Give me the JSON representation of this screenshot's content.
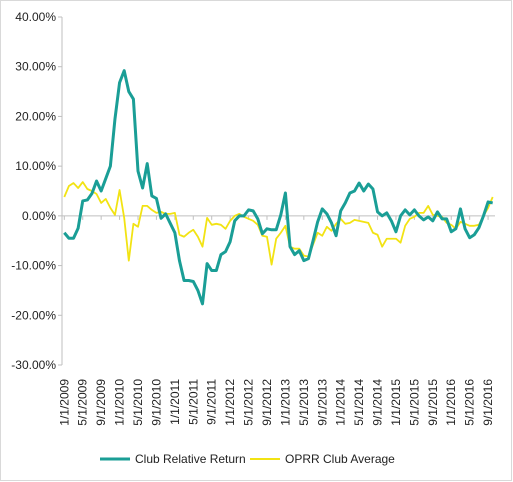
{
  "chart_data": {
    "type": "line",
    "categories": [
      "1/1/2009",
      null,
      null,
      null,
      "5/1/2009",
      null,
      null,
      null,
      "9/1/2009",
      null,
      null,
      null,
      "1/1/2010",
      null,
      null,
      null,
      "5/1/2010",
      null,
      null,
      null,
      "9/1/2010",
      null,
      null,
      null,
      "1/1/2011",
      null,
      null,
      null,
      "5/1/2011",
      null,
      null,
      null,
      "9/1/2011",
      null,
      null,
      null,
      "1/1/2012",
      null,
      null,
      null,
      "5/1/2012",
      null,
      null,
      null,
      "9/1/2012",
      null,
      null,
      null,
      "1/1/2013",
      null,
      null,
      null,
      "5/1/2013",
      null,
      null,
      null,
      "9/1/2013",
      null,
      null,
      null,
      "1/1/2014",
      null,
      null,
      null,
      "5/1/2014",
      null,
      null,
      null,
      "9/1/2014",
      null,
      null,
      null,
      "1/1/2015",
      null,
      null,
      null,
      "5/1/2015",
      null,
      null,
      null,
      "9/1/2015",
      null,
      null,
      null,
      "1/1/2016",
      null,
      null,
      null,
      "5/1/2016",
      null,
      null,
      null,
      "9/1/2016",
      null
    ],
    "series": [
      {
        "name": "Club Relative Return",
        "color": "#1a9e96",
        "values": [
          -3.4,
          -4.5,
          -4.5,
          -2.5,
          3,
          3.2,
          4.5,
          7,
          5,
          7.5,
          10,
          19.5,
          26.8,
          29.2,
          25,
          23.5,
          9,
          5.6,
          10.5,
          4,
          3.5,
          -0.5,
          0.4,
          -1.5,
          -3.4,
          -9,
          -13,
          -13,
          -13.2,
          -15,
          -17.7,
          -9.6,
          -11,
          -11,
          -7.8,
          -7.2,
          -5.2,
          -1,
          0,
          0,
          1.2,
          1,
          -0.6,
          -3.6,
          -2.6,
          -2.8,
          -2.8,
          0.2,
          4.6,
          -6.2,
          -7.8,
          -7,
          -9,
          -8.6,
          -5,
          -1.2,
          1.4,
          0.4,
          -1.4,
          -4,
          1,
          2.6,
          4.6,
          5,
          6.6,
          5,
          6.4,
          5.4,
          0.8,
          0,
          0.6,
          -1,
          -3.2,
          0,
          1.2,
          0.2,
          1.2,
          0,
          -0.8,
          -0.2,
          -1,
          0.8,
          -0.6,
          -0.6,
          -3.2,
          -2.6,
          1.4,
          -2.6,
          -4.4,
          -3.8,
          -2.4,
          0,
          2.8,
          2.6
        ]
      },
      {
        "name": "OPRR Club Average",
        "color": "#f2e313",
        "values": [
          3.8,
          6,
          6.6,
          5.6,
          6.8,
          5.4,
          5,
          4.4,
          2.6,
          3.4,
          1.6,
          0.2,
          5.2,
          -0.4,
          -9,
          -1.6,
          -2.2,
          2,
          2,
          1.2,
          0.6,
          0.8,
          0.4,
          0.4,
          0.6,
          -3.8,
          -4.2,
          -3.4,
          -2.8,
          -4.2,
          -6.2,
          -0.4,
          -1.8,
          -1.6,
          -1.8,
          -2.6,
          -1,
          0,
          0.4,
          -0.2,
          -0.6,
          -1,
          -1.8,
          -4,
          -4.2,
          -9.8,
          -4.6,
          -3.4,
          -2,
          -6.2,
          -6.6,
          -6.6,
          -8,
          -8.2,
          -5.8,
          -3.4,
          -4,
          -2.2,
          -3,
          -1.6,
          -0.6,
          -1.6,
          -1.4,
          -0.8,
          -1,
          -1.2,
          -1.4,
          -3.4,
          -3.8,
          -6.2,
          -4.6,
          -4.6,
          -4.6,
          -5.4,
          -2,
          -0.6,
          -0.2,
          0.6,
          0.6,
          2,
          0.2,
          0,
          -0.2,
          -1.4,
          -1.8,
          -2.6,
          -1.2,
          -1.6,
          -2,
          -2,
          -1.8,
          0,
          1.6,
          3.8
        ]
      }
    ],
    "ylim": [
      -30,
      40
    ],
    "yticks": [
      {
        "value": -30,
        "label": "-30.00%"
      },
      {
        "value": -20,
        "label": "-20.00%"
      },
      {
        "value": -10,
        "label": "-10.00%"
      },
      {
        "value": 0,
        "label": "0.00%"
      },
      {
        "value": 10,
        "label": "10.00%"
      },
      {
        "value": 20,
        "label": "20.00%"
      },
      {
        "value": 30,
        "label": "30.00%"
      },
      {
        "value": 40,
        "label": "40.00%"
      }
    ],
    "grid": false,
    "legend": "bottom"
  }
}
